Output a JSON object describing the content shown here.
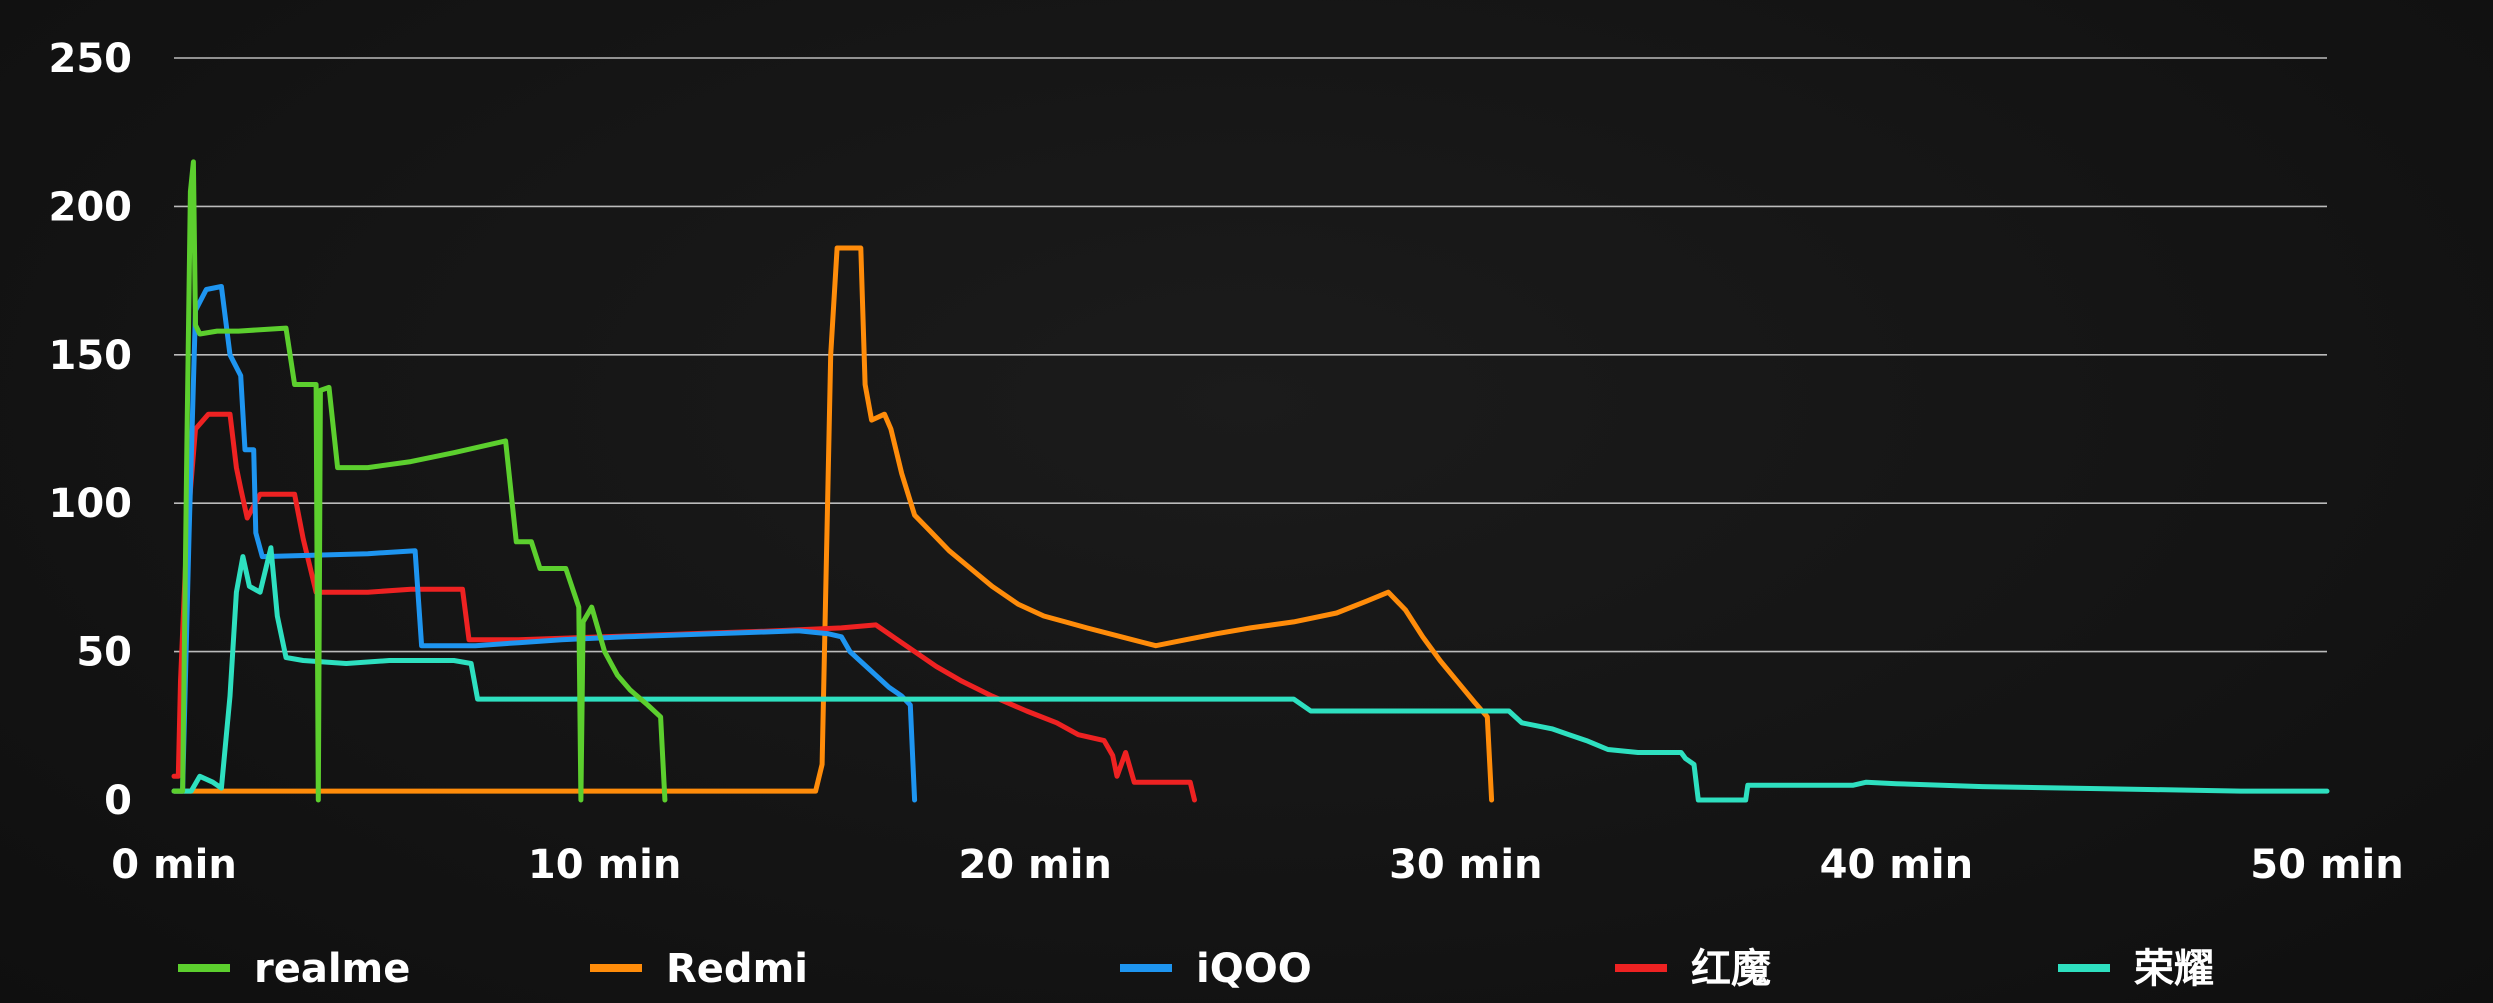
{
  "chart_data": {
    "type": "line",
    "title": "",
    "xlabel": "",
    "ylabel": "",
    "xlim": [
      0,
      50
    ],
    "ylim": [
      0,
      250
    ],
    "x_ticks": [
      0,
      10,
      20,
      30,
      40,
      50
    ],
    "x_tick_labels": [
      "0 min",
      "10 min",
      "20 min",
      "30 min",
      "40 min",
      "50 min"
    ],
    "y_ticks": [
      0,
      50,
      100,
      150,
      200,
      250
    ],
    "y_tick_labels": [
      "0",
      "50",
      "100",
      "150",
      "200",
      "250"
    ],
    "grid": "horizontal",
    "legend_position": "bottom",
    "series": [
      {
        "name": "realme",
        "color": "#5ccf2e",
        "points": [
          [
            0.0,
            3
          ],
          [
            0.2,
            3
          ],
          [
            0.3,
            120
          ],
          [
            0.38,
            205
          ],
          [
            0.45,
            215
          ],
          [
            0.5,
            160
          ],
          [
            0.6,
            157
          ],
          [
            1.0,
            158
          ],
          [
            1.5,
            158
          ],
          [
            2.6,
            159
          ],
          [
            2.8,
            140
          ],
          [
            3.3,
            140
          ],
          [
            3.35,
            0
          ],
          [
            3.4,
            138
          ],
          [
            3.6,
            139
          ],
          [
            3.8,
            112
          ],
          [
            4.5,
            112
          ],
          [
            5.5,
            114
          ],
          [
            6.5,
            117
          ],
          [
            7.7,
            121
          ],
          [
            7.95,
            87
          ],
          [
            8.3,
            87
          ],
          [
            8.5,
            78
          ],
          [
            9.1,
            78
          ],
          [
            9.4,
            65
          ],
          [
            9.45,
            0
          ],
          [
            9.5,
            60
          ],
          [
            9.7,
            65
          ],
          [
            10.0,
            50
          ],
          [
            10.3,
            42
          ],
          [
            10.6,
            37
          ],
          [
            11.0,
            32
          ],
          [
            11.3,
            28
          ],
          [
            11.4,
            0
          ]
        ]
      },
      {
        "name": "Redmi",
        "color": "#ff8c0a",
        "points": [
          [
            0.0,
            3
          ],
          [
            5.0,
            3
          ],
          [
            10.0,
            3
          ],
          [
            14.9,
            3
          ],
          [
            15.05,
            12
          ],
          [
            15.25,
            150
          ],
          [
            15.4,
            186
          ],
          [
            15.95,
            186
          ],
          [
            16.05,
            140
          ],
          [
            16.2,
            128
          ],
          [
            16.5,
            130
          ],
          [
            16.65,
            125
          ],
          [
            16.9,
            110
          ],
          [
            17.2,
            96
          ],
          [
            17.6,
            90
          ],
          [
            18.0,
            84
          ],
          [
            18.5,
            78
          ],
          [
            19.0,
            72
          ],
          [
            19.6,
            66
          ],
          [
            20.2,
            62
          ],
          [
            20.7,
            60
          ],
          [
            21.2,
            58
          ],
          [
            22.0,
            55
          ],
          [
            22.8,
            52
          ],
          [
            23.5,
            54
          ],
          [
            24.2,
            56
          ],
          [
            25.0,
            58
          ],
          [
            26.0,
            60
          ],
          [
            27.0,
            63
          ],
          [
            27.7,
            67
          ],
          [
            28.2,
            70
          ],
          [
            28.6,
            64
          ],
          [
            29.0,
            55
          ],
          [
            29.4,
            47
          ],
          [
            29.8,
            40
          ],
          [
            30.2,
            33
          ],
          [
            30.5,
            28
          ],
          [
            30.6,
            0
          ]
        ]
      },
      {
        "name": "iQOO",
        "color": "#1e95f0",
        "points": [
          [
            0.0,
            3
          ],
          [
            0.2,
            3
          ],
          [
            0.35,
            90
          ],
          [
            0.5,
            165
          ],
          [
            0.75,
            172
          ],
          [
            1.1,
            173
          ],
          [
            1.3,
            150
          ],
          [
            1.55,
            143
          ],
          [
            1.65,
            118
          ],
          [
            1.85,
            118
          ],
          [
            1.9,
            90
          ],
          [
            2.05,
            82
          ],
          [
            4.5,
            83
          ],
          [
            5.6,
            84
          ],
          [
            5.75,
            52
          ],
          [
            7.0,
            52
          ],
          [
            8.0,
            53
          ],
          [
            9.0,
            54
          ],
          [
            10.5,
            55
          ],
          [
            12.5,
            56
          ],
          [
            14.5,
            57
          ],
          [
            15.2,
            56
          ],
          [
            15.5,
            55
          ],
          [
            15.7,
            50
          ],
          [
            16.0,
            46
          ],
          [
            16.3,
            42
          ],
          [
            16.6,
            38
          ],
          [
            16.9,
            35
          ],
          [
            17.1,
            32
          ],
          [
            17.2,
            0
          ]
        ]
      },
      {
        "name": "红魔",
        "color": "#ee2222",
        "points": [
          [
            0.0,
            8
          ],
          [
            0.1,
            8
          ],
          [
            0.15,
            40
          ],
          [
            0.3,
            90
          ],
          [
            0.5,
            125
          ],
          [
            0.8,
            130
          ],
          [
            1.3,
            130
          ],
          [
            1.45,
            112
          ],
          [
            1.55,
            105
          ],
          [
            1.7,
            95
          ],
          [
            2.0,
            103
          ],
          [
            2.8,
            103
          ],
          [
            3.0,
            88
          ],
          [
            3.3,
            70
          ],
          [
            4.5,
            70
          ],
          [
            5.5,
            71
          ],
          [
            6.7,
            71
          ],
          [
            6.85,
            54
          ],
          [
            8.0,
            54
          ],
          [
            10.0,
            55
          ],
          [
            12.0,
            56
          ],
          [
            14.0,
            57
          ],
          [
            15.5,
            58
          ],
          [
            16.3,
            59
          ],
          [
            16.7,
            55
          ],
          [
            17.2,
            50
          ],
          [
            17.7,
            45
          ],
          [
            18.3,
            40
          ],
          [
            19.0,
            35
          ],
          [
            19.8,
            30
          ],
          [
            20.5,
            26
          ],
          [
            21.0,
            22
          ],
          [
            21.6,
            20
          ],
          [
            21.8,
            15
          ],
          [
            21.9,
            8
          ],
          [
            22.1,
            16
          ],
          [
            22.3,
            6
          ],
          [
            23.0,
            6
          ],
          [
            23.6,
            6
          ],
          [
            23.7,
            0
          ]
        ]
      },
      {
        "name": "荣耀",
        "color": "#2ee0c0",
        "points": [
          [
            0.0,
            3
          ],
          [
            0.4,
            3
          ],
          [
            0.6,
            8
          ],
          [
            0.9,
            6
          ],
          [
            1.1,
            4
          ],
          [
            1.3,
            35
          ],
          [
            1.45,
            70
          ],
          [
            1.6,
            82
          ],
          [
            1.75,
            72
          ],
          [
            2.0,
            70
          ],
          [
            2.25,
            85
          ],
          [
            2.4,
            62
          ],
          [
            2.6,
            48
          ],
          [
            3.0,
            47
          ],
          [
            4.0,
            46
          ],
          [
            5.0,
            47
          ],
          [
            6.5,
            47
          ],
          [
            6.9,
            46
          ],
          [
            7.05,
            34
          ],
          [
            8.0,
            34
          ],
          [
            10.0,
            34
          ],
          [
            12.0,
            34
          ],
          [
            14.0,
            34
          ],
          [
            16.0,
            34
          ],
          [
            18.0,
            34
          ],
          [
            20.0,
            34
          ],
          [
            22.0,
            34
          ],
          [
            24.0,
            34
          ],
          [
            26.0,
            34
          ],
          [
            26.4,
            30
          ],
          [
            28.0,
            30
          ],
          [
            30.0,
            30
          ],
          [
            31.0,
            30
          ],
          [
            31.3,
            26
          ],
          [
            32.0,
            24
          ],
          [
            32.4,
            22
          ],
          [
            32.8,
            20
          ],
          [
            33.3,
            17
          ],
          [
            34.0,
            16
          ],
          [
            34.5,
            16
          ],
          [
            35.0,
            16
          ],
          [
            35.1,
            14
          ],
          [
            35.3,
            12
          ],
          [
            35.4,
            0
          ],
          [
            36.0,
            0
          ],
          [
            36.5,
            0
          ],
          [
            36.55,
            5
          ],
          [
            38.0,
            5
          ],
          [
            39.0,
            5
          ],
          [
            39.3,
            6
          ],
          [
            40.0,
            5.5
          ],
          [
            42.0,
            4.5
          ],
          [
            44.0,
            4
          ],
          [
            46.0,
            3.5
          ],
          [
            48.0,
            3
          ],
          [
            50.0,
            3
          ]
        ]
      }
    ]
  }
}
